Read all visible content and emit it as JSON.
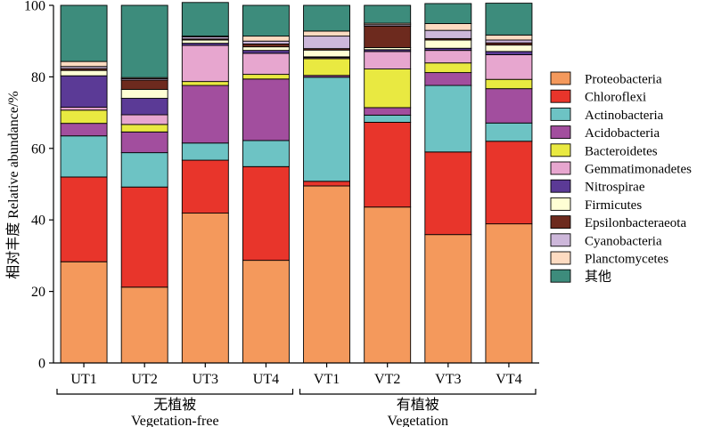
{
  "chart_data": {
    "type": "bar",
    "stacked": true,
    "ylabel": "相对丰度 Relative abundance/%",
    "ylim": [
      0,
      100
    ],
    "yticks": [
      "0",
      "20",
      "40",
      "60",
      "80",
      "100"
    ],
    "categories": [
      "UT1",
      "UT2",
      "UT3",
      "UT4",
      "VT1",
      "VT2",
      "VT3",
      "VT4"
    ],
    "groups": [
      {
        "label_cn": "无植被",
        "label_en": "Vegetation-free",
        "categories": [
          "UT1",
          "UT2",
          "UT3",
          "UT4"
        ]
      },
      {
        "label_cn": "有植被",
        "label_en": "Vegetation",
        "categories": [
          "VT1",
          "VT2",
          "VT3",
          "VT4"
        ]
      }
    ],
    "legend_position": "right",
    "series": [
      {
        "name": "Proteobacteria",
        "color": "#F4995C",
        "values": [
          28.3,
          21.2,
          41.9,
          28.7,
          49.5,
          43.6,
          35.9,
          38.9
        ]
      },
      {
        "name": "Chloroflexi",
        "color": "#E8352B",
        "values": [
          23.7,
          28.0,
          14.8,
          26.2,
          1.3,
          23.7,
          23.1,
          23.1
        ]
      },
      {
        "name": "Actinobacteria",
        "color": "#6DC3C4",
        "values": [
          11.5,
          9.6,
          4.8,
          7.3,
          29.1,
          2.0,
          18.6,
          5.1
        ]
      },
      {
        "name": "Acidobacteria",
        "color": "#A24E9E",
        "values": [
          3.5,
          5.8,
          16.1,
          17.2,
          0.5,
          2.1,
          3.6,
          9.6
        ]
      },
      {
        "name": "Bacteroidetes",
        "color": "#E9E941",
        "values": [
          3.7,
          2.1,
          1.1,
          1.3,
          4.7,
          10.8,
          2.7,
          2.6
        ]
      },
      {
        "name": "Gemmatimonadetes",
        "color": "#E7A6CF",
        "values": [
          0.8,
          2.7,
          10.1,
          5.9,
          0.3,
          4.9,
          3.5,
          6.9
        ]
      },
      {
        "name": "Nitrospirae",
        "color": "#5B3A96",
        "values": [
          8.8,
          4.6,
          0.6,
          0.8,
          0.2,
          0.5,
          0.6,
          0.9
        ]
      },
      {
        "name": "Firmicutes",
        "color": "#FFFFD4",
        "values": [
          1.5,
          2.5,
          0.9,
          1.0,
          1.9,
          0.6,
          2.3,
          1.8
        ]
      },
      {
        "name": "Epsilonbacteraeota",
        "color": "#6D2A1E",
        "values": [
          0.5,
          2.6,
          0.3,
          0.8,
          0.4,
          6.0,
          0.4,
          0.6
        ]
      },
      {
        "name": "Cyanobacteria",
        "color": "#CDB7DA",
        "values": [
          0.6,
          0.4,
          0.6,
          0.8,
          3.5,
          0.4,
          2.3,
          0.8
        ]
      },
      {
        "name": "Planctomycetes",
        "color": "#FDDBC1",
        "values": [
          1.4,
          0.3,
          0.2,
          1.4,
          1.4,
          0.4,
          1.9,
          1.4
        ]
      },
      {
        "name": "其他",
        "color": "#3D8C7C",
        "values": [
          15.7,
          20.2,
          9.4,
          8.6,
          7.2,
          5.0,
          5.6,
          8.9
        ]
      }
    ]
  }
}
